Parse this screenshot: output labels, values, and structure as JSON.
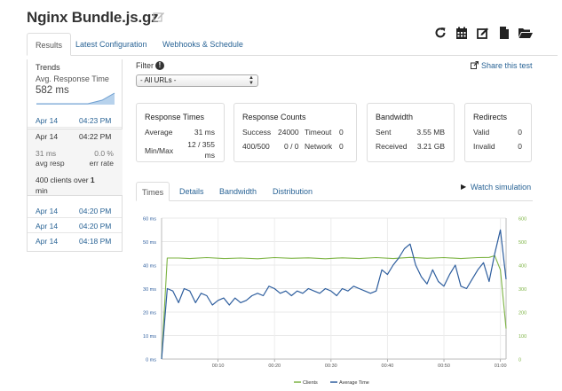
{
  "page": {
    "title": "Nginx Bundle.js.gz"
  },
  "tabs": [
    {
      "label": "Results",
      "active": true
    },
    {
      "label": "Latest Configuration"
    },
    {
      "label": "Webhooks & Schedule"
    }
  ],
  "toolbar": {
    "icons": [
      "refresh-icon",
      "calendar-icon",
      "edit-icon",
      "file-icon",
      "folder-open-icon"
    ]
  },
  "sidebar": {
    "trends_label": "Trends",
    "avg_label": "Avg. Response Time",
    "avg_value": "582 ms",
    "runs": [
      {
        "date": "Apr 14",
        "time": "04:23 PM"
      },
      {
        "date": "Apr 14",
        "time": "04:22 PM",
        "selected": true,
        "resp": "31 ms",
        "resp_label": "avg resp",
        "err": "0.0 %",
        "err_label": "err rate",
        "clients_text": "400 clients over ",
        "clients_bold": "1",
        "clients_tail": "min"
      },
      {
        "date": "Apr 14",
        "time": "04:20 PM"
      },
      {
        "date": "Apr 14",
        "time": "04:20 PM"
      },
      {
        "date": "Apr 14",
        "time": "04:18 PM"
      }
    ]
  },
  "filter": {
    "label": "Filter",
    "selected": "- All URLs -"
  },
  "share": {
    "label": "Share this test"
  },
  "cards": {
    "response_times": {
      "title": "Response Times",
      "average_label": "Average",
      "average_value": "31 ms",
      "minmax_label": "Min/Max",
      "minmax_value_1": "12 / 355",
      "minmax_value_2": "ms"
    },
    "response_counts": {
      "title": "Response Counts",
      "success_label": "Success",
      "success_value": "24000",
      "timeout_label": "Timeout",
      "timeout_value": "0",
      "code_label": "400/500",
      "code_value": "0 / 0",
      "network_label": "Network",
      "network_value": "0"
    },
    "bandwidth": {
      "title": "Bandwidth",
      "sent_label": "Sent",
      "sent_value": "3.55 MB",
      "received_label": "Received",
      "received_value": "3.21 GB"
    },
    "redirects": {
      "title": "Redirects",
      "valid_label": "Valid",
      "valid_value": "0",
      "invalid_label": "Invalid",
      "invalid_value": "0"
    }
  },
  "sub_tabs": [
    {
      "label": "Times",
      "active": true
    },
    {
      "label": "Details"
    },
    {
      "label": "Bandwidth"
    },
    {
      "label": "Distribution"
    }
  ],
  "watch": {
    "label": "Watch simulation"
  },
  "colors": {
    "link": "#2a6496",
    "clients": "#7cb342",
    "avg_time": "#2e5e9e"
  },
  "chart_data": {
    "type": "line",
    "left_ticks": [
      "60 ms",
      "50 ms",
      "40 ms",
      "30 ms",
      "20 ms",
      "10 ms",
      "0 ms"
    ],
    "right_ticks": [
      "600",
      "500",
      "400",
      "300",
      "200",
      "100",
      "0"
    ],
    "x_ticks": [
      "00:10",
      "00:20",
      "00:30",
      "00:40",
      "00:50",
      "01:00"
    ],
    "ylim_left": [
      0,
      60
    ],
    "ylim_right": [
      0,
      600
    ],
    "xlim": [
      0,
      61
    ],
    "grid": true,
    "legend_position": "bottom",
    "series": [
      {
        "name": "Clients",
        "axis": "right",
        "x": [
          0,
          1,
          3,
          5,
          8,
          11,
          14,
          17,
          20,
          23,
          26,
          29,
          32,
          35,
          38,
          41,
          44,
          47,
          50,
          53,
          56,
          58,
          59,
          60,
          61
        ],
        "values": [
          0,
          430,
          430,
          428,
          432,
          428,
          430,
          427,
          432,
          429,
          431,
          427,
          431,
          428,
          432,
          428,
          433,
          429,
          432,
          428,
          432,
          433,
          440,
          380,
          130
        ]
      },
      {
        "name": "Average Time",
        "axis": "left",
        "x": [
          0,
          1,
          2,
          3,
          4,
          5,
          6,
          7,
          8,
          9,
          10,
          11,
          12,
          13,
          14,
          15,
          16,
          17,
          18,
          19,
          20,
          21,
          22,
          23,
          24,
          25,
          26,
          27,
          28,
          29,
          30,
          31,
          32,
          33,
          34,
          35,
          36,
          37,
          38,
          39,
          40,
          41,
          42,
          43,
          44,
          45,
          46,
          47,
          48,
          49,
          50,
          51,
          52,
          53,
          54,
          55,
          56,
          57,
          58,
          59,
          60,
          61
        ],
        "values": [
          0,
          30,
          29,
          24,
          30,
          29,
          24,
          28,
          27,
          23,
          25,
          26,
          23,
          26,
          24,
          25,
          27,
          28,
          27,
          31,
          30,
          28,
          29,
          27,
          29,
          28,
          30,
          29,
          28,
          30,
          29,
          27,
          30,
          29,
          31,
          30,
          29,
          28,
          29,
          38,
          36,
          40,
          43,
          47,
          49,
          40,
          35,
          32,
          38,
          33,
          31,
          36,
          40,
          31,
          30,
          34,
          38,
          41,
          33,
          45,
          55,
          34
        ]
      }
    ]
  }
}
